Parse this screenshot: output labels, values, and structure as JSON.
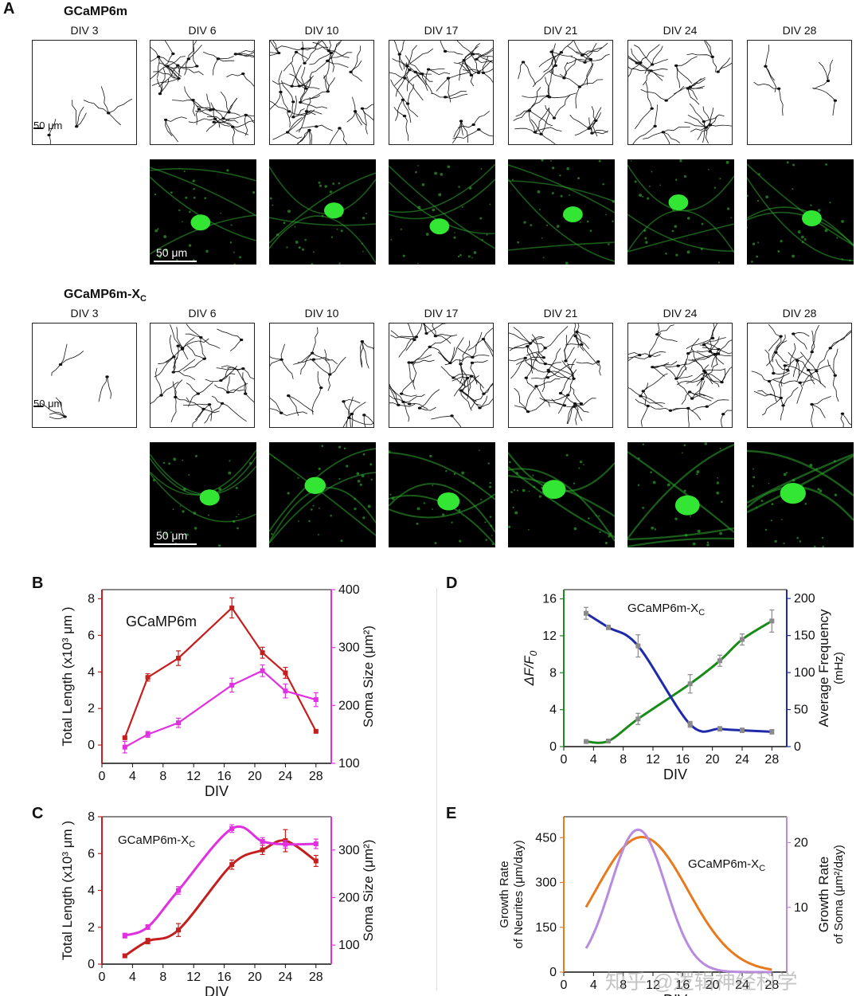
{
  "panelA": {
    "letter": "A",
    "groups": [
      {
        "title": "GCaMP6m",
        "sub": "",
        "divs": [
          "DIV 3",
          "DIV 6",
          "DIV 10",
          "DIV 17",
          "DIV 21",
          "DIV 24",
          "DIV 28"
        ],
        "scale": "50 μm",
        "scale_fluo": "50 μm"
      },
      {
        "title": "GCaMP6m-X",
        "sub": "C",
        "divs": [
          "DIV 3",
          "DIV 6",
          "DIV 10",
          "DIV 17",
          "DIV 21",
          "DIV 24",
          "DIV 28"
        ],
        "scale": "50 μm",
        "scale_fluo": "50 μm"
      }
    ]
  },
  "chart_data": [
    {
      "id": "B",
      "type": "line",
      "label": "GCaMP6m",
      "xlabel": "DIV",
      "xlim": [
        0,
        30
      ],
      "xticks": [
        0,
        4,
        8,
        12,
        16,
        20,
        24,
        28
      ],
      "ylabel_left": "Total Length (x10³ μm )",
      "ylim_left": [
        -1,
        8.5
      ],
      "yticks_left": [
        0,
        2,
        4,
        6,
        8
      ],
      "ylabel_right": "Soma Size (μm²)",
      "ylim_right": [
        100,
        400
      ],
      "yticks_right": [
        100,
        200,
        300,
        400
      ],
      "series": [
        {
          "axis": "left",
          "color": "#c41e1e",
          "x": [
            3,
            6,
            10,
            17,
            21,
            24,
            28
          ],
          "y": [
            0.4,
            3.7,
            4.75,
            7.5,
            5.05,
            3.95,
            0.75
          ],
          "err": [
            0.05,
            0.2,
            0.4,
            0.55,
            0.3,
            0.3,
            0.05
          ]
        },
        {
          "axis": "right",
          "color": "#e030e0",
          "x": [
            3,
            6,
            10,
            17,
            21,
            24,
            28
          ],
          "y": [
            128,
            150,
            170,
            235,
            260,
            225,
            210
          ],
          "err": [
            10,
            5,
            8,
            12,
            10,
            12,
            12
          ]
        }
      ]
    },
    {
      "id": "C",
      "type": "line",
      "label": "GCaMP6m-X",
      "label_sub": "C",
      "xlabel": "DIV",
      "xlim": [
        0,
        30
      ],
      "xticks": [
        0,
        4,
        8,
        12,
        16,
        20,
        24,
        28
      ],
      "ylabel_left": "Total Length (x10³ μm )",
      "ylim_left": [
        0,
        8
      ],
      "yticks_left": [
        0,
        2,
        4,
        6,
        8
      ],
      "ylabel_right": "Soma Size (μm²)",
      "ylim_right": [
        60,
        370
      ],
      "yticks_right": [
        100,
        200,
        300
      ],
      "series": [
        {
          "axis": "left",
          "color": "#c41e1e",
          "x": [
            3,
            6,
            10,
            17,
            21,
            24,
            28
          ],
          "y": [
            0.45,
            1.25,
            1.85,
            5.4,
            6.2,
            6.7,
            5.6
          ],
          "err": [
            0.1,
            0.15,
            0.35,
            0.25,
            0.25,
            0.6,
            0.3
          ]
        },
        {
          "axis": "right",
          "color": "#e030e0",
          "x": [
            3,
            6,
            10,
            17,
            21,
            24,
            28
          ],
          "y": [
            120,
            138,
            215,
            345,
            318,
            312,
            313
          ],
          "err": [
            5,
            5,
            8,
            8,
            8,
            8,
            10
          ]
        }
      ]
    },
    {
      "id": "D",
      "type": "line",
      "label": "GCaMP6m-X",
      "label_sub": "C",
      "xlabel": "DIV",
      "xlim": [
        0,
        30
      ],
      "xticks": [
        0,
        4,
        8,
        12,
        16,
        20,
        24,
        28
      ],
      "ylabel_left": "ΔF/F",
      "ylabel_left_sub": "0",
      "ylim_left": [
        0,
        17
      ],
      "yticks_left": [
        0,
        4,
        8,
        12,
        16
      ],
      "ylabel_right": "Average Frequency",
      "ylabel_right_2": "(mHz)",
      "ylim_right": [
        0,
        212
      ],
      "yticks_right": [
        0,
        50,
        100,
        150,
        200
      ],
      "series": [
        {
          "axis": "left",
          "color": "#1a8a1a",
          "x": [
            3,
            6,
            10,
            17,
            21,
            24,
            28
          ],
          "y": [
            0.55,
            0.6,
            3.0,
            6.8,
            9.3,
            11.6,
            13.6
          ],
          "err": [
            0.1,
            0.1,
            0.6,
            1.0,
            0.6,
            0.6,
            1.2
          ]
        },
        {
          "axis": "right",
          "color": "#1f2aa8",
          "x": [
            3,
            6,
            10,
            17,
            21,
            24,
            28
          ],
          "y": [
            180,
            161,
            136,
            30,
            24,
            22,
            20
          ],
          "err": [
            8,
            3,
            15,
            4,
            3,
            3,
            3
          ]
        }
      ]
    },
    {
      "id": "E",
      "type": "line",
      "label": "GCaMP6m-X",
      "label_sub": "C",
      "xlabel": "DIV",
      "xlim": [
        0,
        30
      ],
      "xticks": [
        0,
        4,
        8,
        12,
        16,
        20,
        24,
        28
      ],
      "ylabel_left": "Growth Rate",
      "ylabel_left_2": "of Neurites (μm/day)",
      "ylim_left": [
        0,
        520
      ],
      "yticks_left": [
        0,
        150,
        300,
        450
      ],
      "ylabel_right": "Growth Rate",
      "ylabel_right_2": "of Soma (μm²/day)",
      "ylim_right": [
        0,
        24
      ],
      "yticks_right": [
        10,
        20
      ],
      "series": [
        {
          "axis": "left",
          "color": "#e87a1e",
          "curve": "gauss",
          "peak_x": 10.5,
          "peak_y": 452,
          "sigma": 6.2
        },
        {
          "axis": "right",
          "color": "#b88ae0",
          "curve": "gauss",
          "peak_x": 10.0,
          "peak_y": 22,
          "sigma": 3.7
        }
      ]
    }
  ],
  "watermark": "知乎 @逻辑神经科学"
}
